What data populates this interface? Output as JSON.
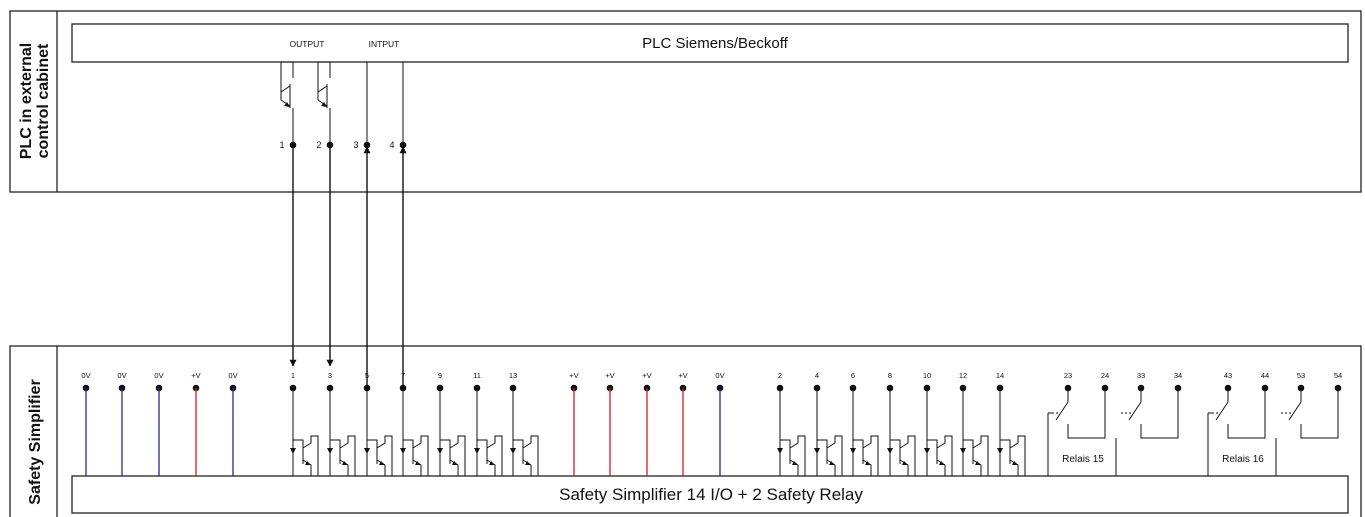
{
  "plc": {
    "side_label_line1": "PLC in external",
    "side_label_line2": "control cabinet",
    "title": "PLC Siemens/Beckoff",
    "output_label": "OUTPUT",
    "input_label": "INTPUT",
    "terminals": [
      {
        "label": "1",
        "type": "output",
        "target": "1"
      },
      {
        "label": "2",
        "type": "output",
        "target": "3"
      },
      {
        "label": "3",
        "type": "input",
        "target": "5"
      },
      {
        "label": "4",
        "type": "input",
        "target": "7"
      }
    ]
  },
  "simplifier": {
    "side_label": "Safety Simplifier",
    "title": "Safety Simplifier 14 I/O + 2 Safety Relay",
    "colors": {
      "zero_v": "#2e2a8c",
      "plus_v": "#d42020",
      "wire": "#111111"
    },
    "terminals": [
      {
        "label": "0V",
        "kind": "0v"
      },
      {
        "label": "0V",
        "kind": "0v"
      },
      {
        "label": "0V",
        "kind": "0v"
      },
      {
        "label": "+V",
        "kind": "+v"
      },
      {
        "label": "0V",
        "kind": "0v"
      },
      {
        "label": "1",
        "kind": "io"
      },
      {
        "label": "3",
        "kind": "io"
      },
      {
        "label": "5",
        "kind": "io"
      },
      {
        "label": "7",
        "kind": "io"
      },
      {
        "label": "9",
        "kind": "io"
      },
      {
        "label": "11",
        "kind": "io"
      },
      {
        "label": "13",
        "kind": "io"
      },
      {
        "label": "+V",
        "kind": "+v"
      },
      {
        "label": "+V",
        "kind": "+v"
      },
      {
        "label": "+V",
        "kind": "+v"
      },
      {
        "label": "+V",
        "kind": "+v"
      },
      {
        "label": "0V",
        "kind": "0v"
      },
      {
        "label": "2",
        "kind": "io"
      },
      {
        "label": "4",
        "kind": "io"
      },
      {
        "label": "6",
        "kind": "io"
      },
      {
        "label": "8",
        "kind": "io"
      },
      {
        "label": "10",
        "kind": "io"
      },
      {
        "label": "12",
        "kind": "io"
      },
      {
        "label": "14",
        "kind": "io"
      }
    ],
    "relays": [
      {
        "name": "Relais 15",
        "contacts": [
          {
            "a": "23",
            "b": "24"
          },
          {
            "a": "33",
            "b": "34"
          }
        ]
      },
      {
        "name": "Relais 16",
        "contacts": [
          {
            "a": "43",
            "b": "44"
          },
          {
            "a": "53",
            "b": "54"
          }
        ]
      }
    ]
  }
}
